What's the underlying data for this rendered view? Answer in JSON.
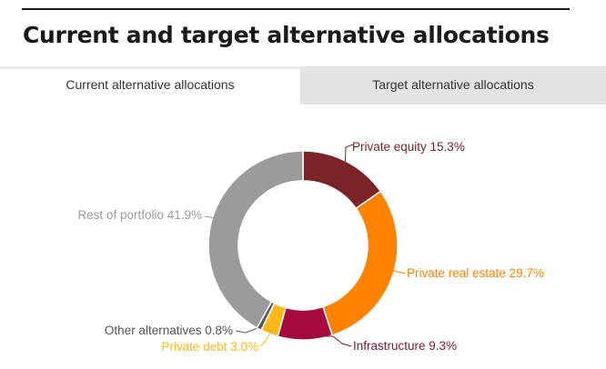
{
  "title": "Current and target alternative allocations",
  "tabs": [
    {
      "label": "Current alternative allocations",
      "active": true
    },
    {
      "label": "Target alternative allocations",
      "active": false
    }
  ],
  "chart_data": {
    "type": "pie",
    "style": "donut",
    "title": "",
    "slices": [
      {
        "label": "Private equity 15.3%",
        "value": 15.3,
        "color": "#7b2427"
      },
      {
        "label": "Private real estate 29.7%",
        "value": 29.7,
        "color": "#ff8200"
      },
      {
        "label": "Infrastructure 9.3%",
        "value": 9.3,
        "color": "#a6093d"
      },
      {
        "label": "Private debt 3.0%",
        "value": 3.0,
        "color": "#ffb81c"
      },
      {
        "label": "Other alternatives 0.8%",
        "value": 0.8,
        "color": "#5a5a5a"
      },
      {
        "label": "Rest of portfolio 41.9%",
        "value": 41.9,
        "color": "#9b9b9b"
      }
    ],
    "label_colors": [
      "#7b2427",
      "#ff8200",
      "#7b1a3a",
      "#ffb81c",
      "#555555",
      "#9b9b9b"
    ]
  }
}
